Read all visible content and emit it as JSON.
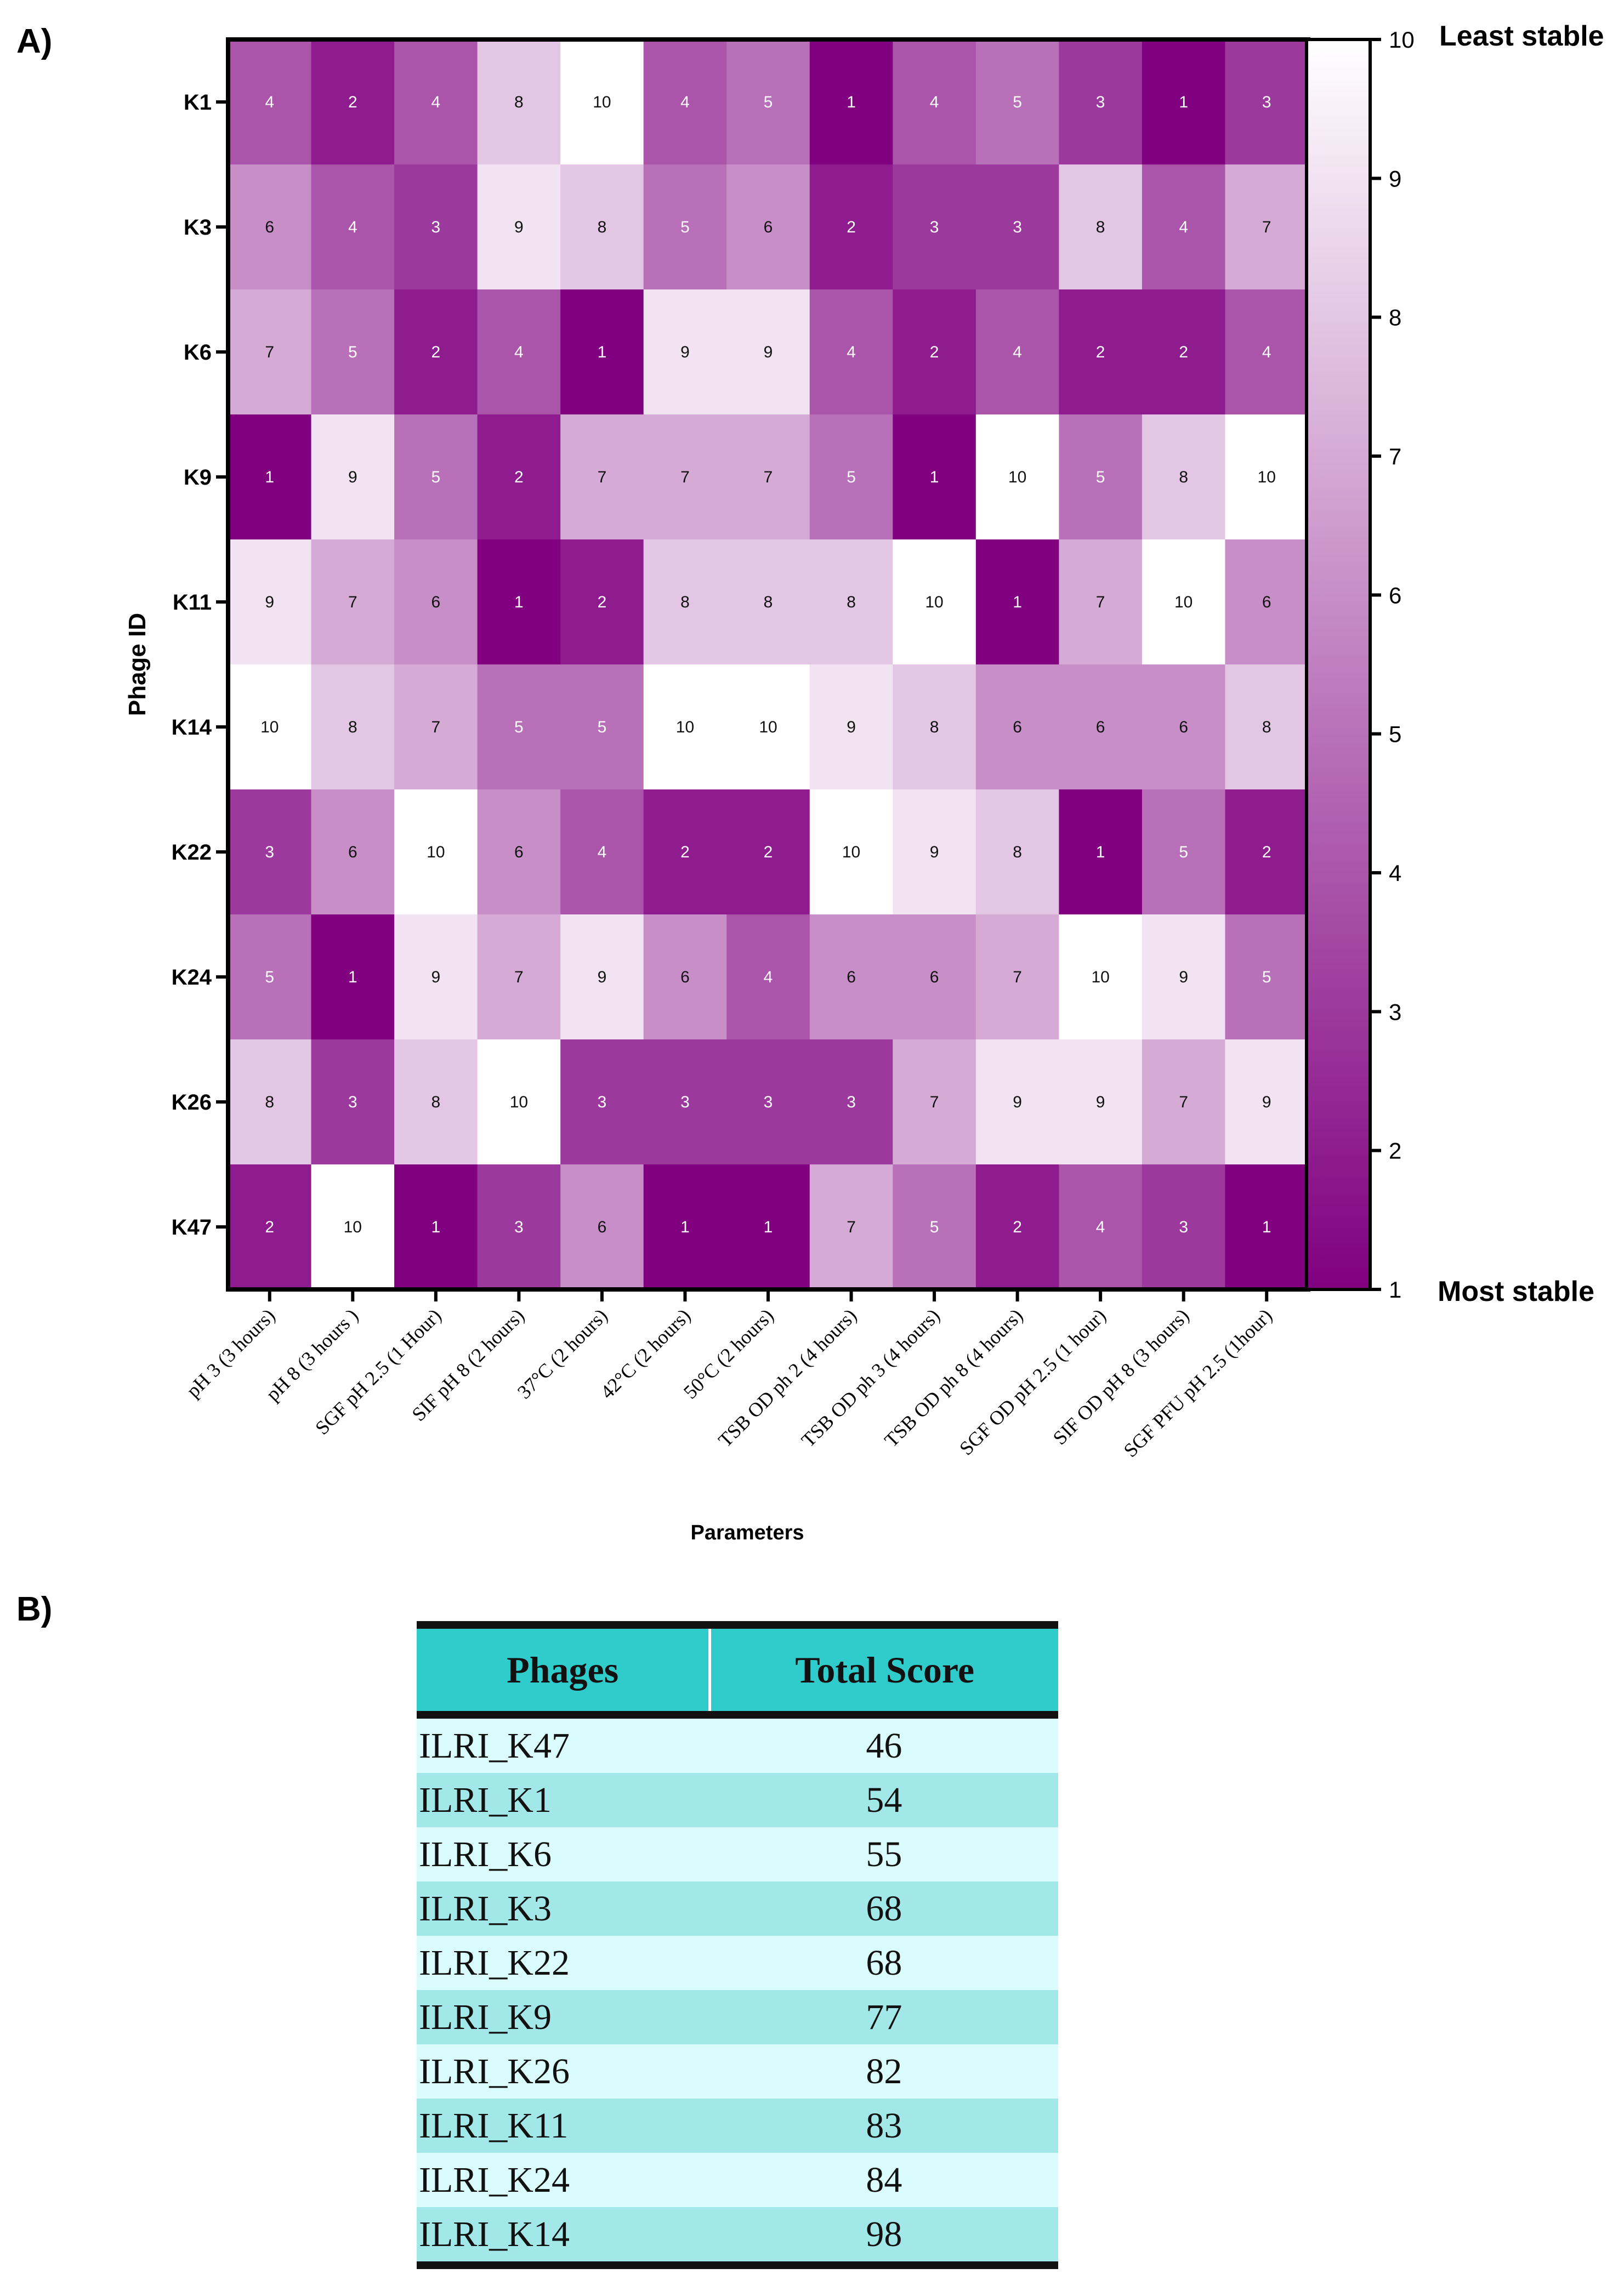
{
  "panels": {
    "a_label": "A)",
    "b_label": "B)"
  },
  "chart_data": {
    "type": "heatmap",
    "ylabel": "Phage ID",
    "xlabel": "Parameters",
    "rows": [
      "K1",
      "K3",
      "K6",
      "K9",
      "K11",
      "K14",
      "K22",
      "K24",
      "K26",
      "K47"
    ],
    "columns": [
      "pH 3 (3 hours)",
      "pH 8 (3 hours )",
      "SGF pH 2.5 (1 Hour)",
      "SIF pH 8 (2 hours)",
      "37°C (2 hours)",
      "42°C (2 hours)",
      "50°C (2 hours)",
      "TSB OD ph 2 (4 hours)",
      "TSB OD ph 3 (4 hours)",
      "TSB OD ph 8 (4 hours)",
      "SGF OD pH 2.5 (1 hour)",
      "SIF OD pH 8 (3 hours)",
      "SGF PFU pH 2.5 (1hour)"
    ],
    "values": [
      [
        4,
        2,
        4,
        8,
        10,
        4,
        5,
        1,
        4,
        5,
        3,
        1,
        3
      ],
      [
        6,
        4,
        3,
        9,
        8,
        5,
        6,
        2,
        3,
        3,
        8,
        4,
        7
      ],
      [
        7,
        5,
        2,
        4,
        1,
        9,
        9,
        4,
        2,
        4,
        2,
        2,
        4
      ],
      [
        1,
        9,
        5,
        2,
        7,
        7,
        7,
        5,
        1,
        10,
        5,
        8,
        10
      ],
      [
        9,
        7,
        6,
        1,
        2,
        8,
        8,
        8,
        10,
        1,
        7,
        10,
        6
      ],
      [
        10,
        8,
        7,
        5,
        5,
        10,
        10,
        9,
        8,
        6,
        6,
        6,
        8
      ],
      [
        3,
        6,
        10,
        6,
        4,
        2,
        2,
        10,
        9,
        8,
        1,
        5,
        2
      ],
      [
        5,
        1,
        9,
        7,
        9,
        6,
        4,
        6,
        6,
        7,
        10,
        9,
        5
      ],
      [
        8,
        3,
        8,
        10,
        3,
        3,
        3,
        3,
        7,
        9,
        9,
        7,
        9
      ],
      [
        2,
        10,
        1,
        3,
        6,
        1,
        1,
        7,
        5,
        2,
        4,
        3,
        1
      ]
    ],
    "colorbar": {
      "range": [
        1,
        10
      ],
      "ticks": [
        "1",
        "2",
        "3",
        "4",
        "5",
        "6",
        "7",
        "8",
        "9",
        "10"
      ],
      "high_label": "Least stable",
      "low_label": "Most stable",
      "low_color": "#800080",
      "high_color": "#ffffff"
    }
  },
  "table": {
    "headers": {
      "phages": "Phages",
      "score": "Total Score"
    },
    "rows": [
      {
        "phage": "ILRI_K47",
        "score": "46"
      },
      {
        "phage": "ILRI_K1",
        "score": "54"
      },
      {
        "phage": "ILRI_K6",
        "score": "55"
      },
      {
        "phage": "ILRI_K3",
        "score": "68"
      },
      {
        "phage": "ILRI_K22",
        "score": "68"
      },
      {
        "phage": "ILRI_K9",
        "score": "77"
      },
      {
        "phage": "ILRI_K26",
        "score": "82"
      },
      {
        "phage": "ILRI_K11",
        "score": "83"
      },
      {
        "phage": "ILRI_K24",
        "score": "84"
      },
      {
        "phage": "ILRI_K14",
        "score": "98"
      }
    ]
  }
}
